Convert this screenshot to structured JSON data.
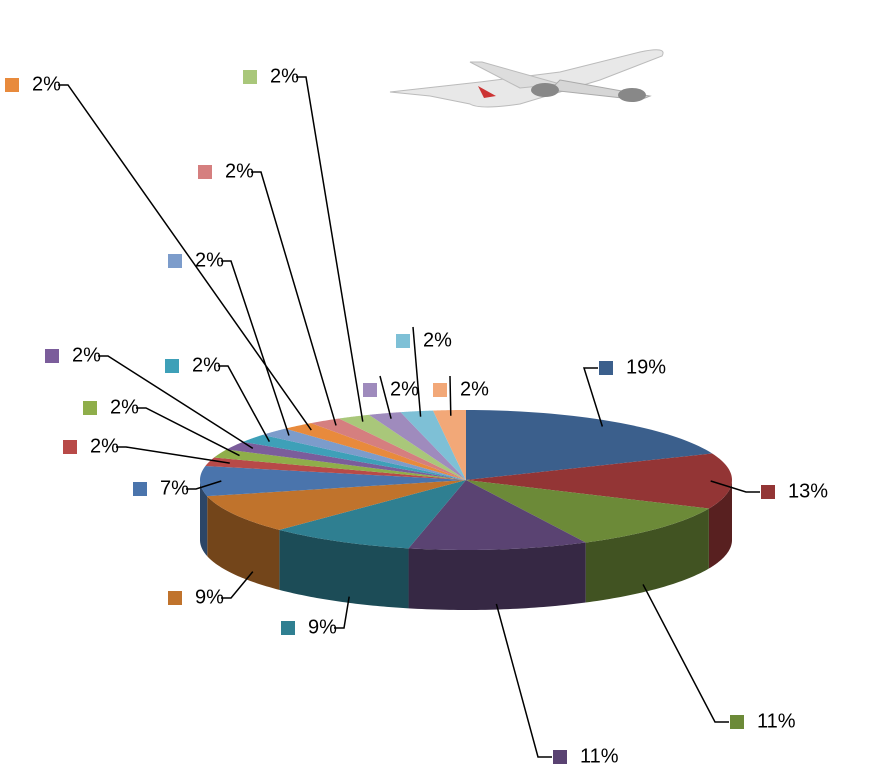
{
  "chart_data": {
    "type": "pie",
    "values": [
      19,
      13,
      11,
      11,
      9,
      9,
      7,
      2,
      2,
      2,
      2,
      2,
      2,
      2,
      2,
      2,
      2,
      2
    ],
    "value_labels": [
      "19%",
      "13%",
      "11%",
      "11%",
      "9%",
      "9%",
      "7%",
      "2%",
      "2%",
      "2%",
      "2%",
      "2%",
      "2%",
      "2%",
      "2%",
      "2%",
      "2%",
      "2%"
    ],
    "colors": [
      "#3b5f8c",
      "#933535",
      "#6c8a38",
      "#5a4372",
      "#2f7f91",
      "#c0732c",
      "#4a74ac",
      "#b84a48",
      "#8fae4a",
      "#7b5d9b",
      "#3ea0b8",
      "#7c9ccb",
      "#e88a3c",
      "#d57f7f",
      "#a9c77a",
      "#9f8bbd",
      "#7ec0d6",
      "#f2a878"
    ]
  }
}
